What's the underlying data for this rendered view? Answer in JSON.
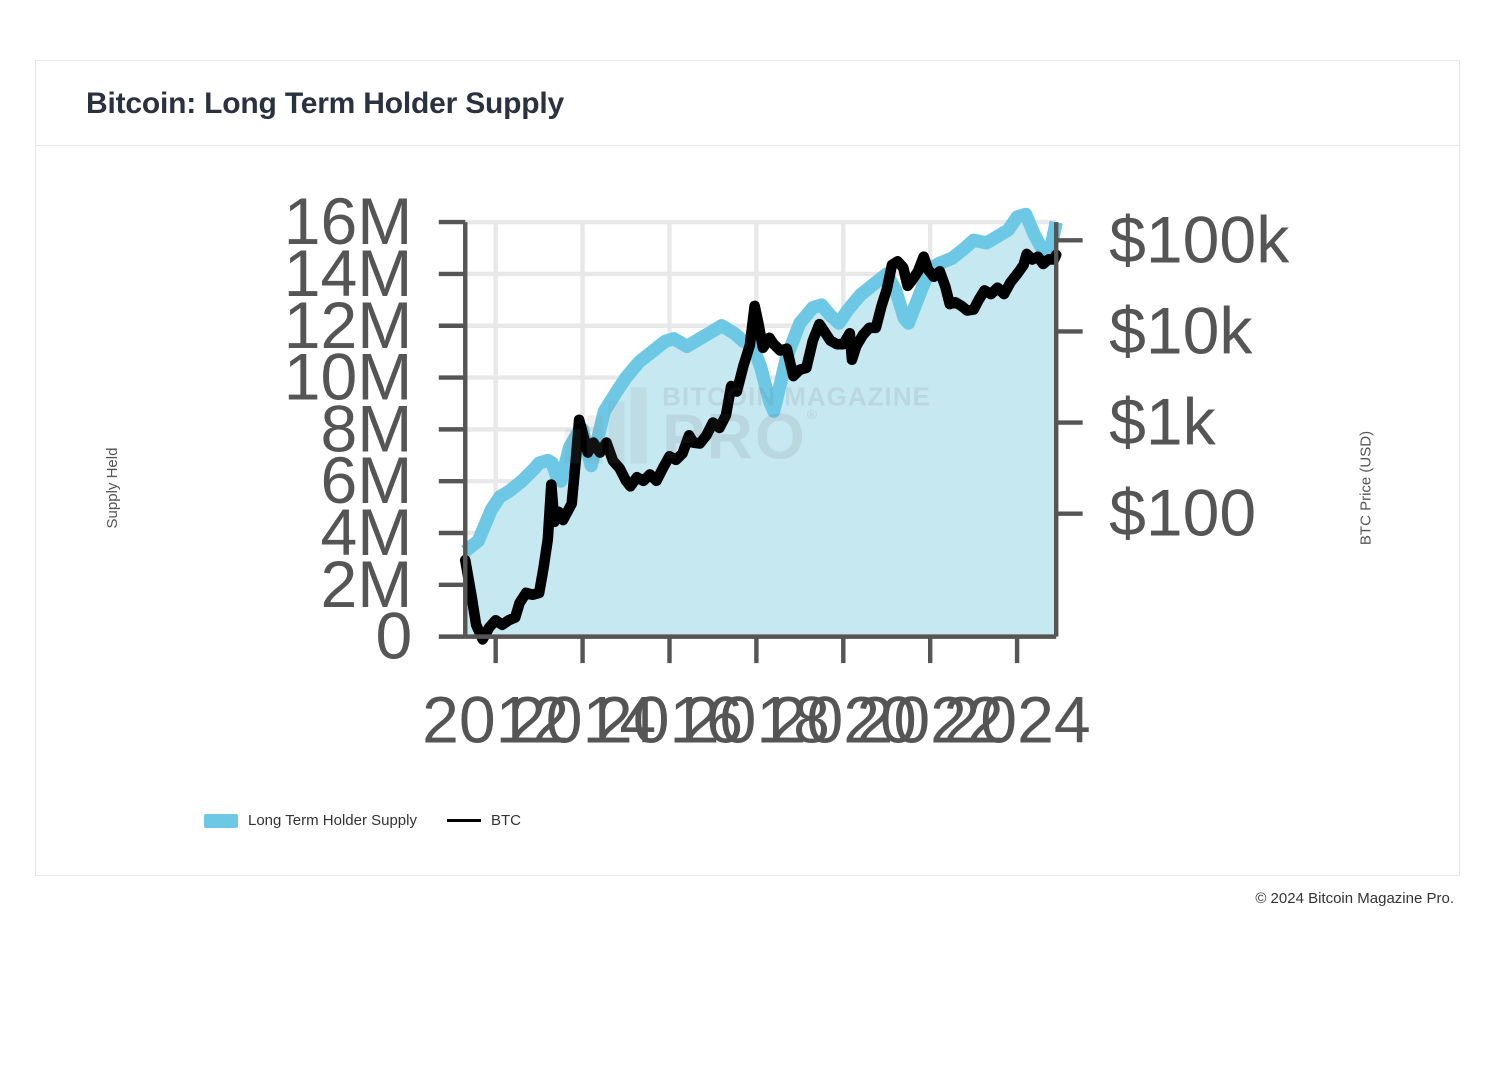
{
  "card": {
    "title": "Bitcoin: Long Term Holder Supply"
  },
  "chart": {
    "type": "area-and-line-dual-axis",
    "background_color": "#ffffff",
    "grid_color": "#e8e8e8",
    "axis_line_color": "#555555",
    "tick_font_size": 15,
    "tick_color": "#555555",
    "x_axis": {
      "min_year": 2011.3,
      "max_year": 2024.9,
      "ticks": [
        2012,
        2014,
        2016,
        2018,
        2020,
        2022,
        2024
      ]
    },
    "y_left": {
      "label": "Supply Held",
      "min": 0,
      "max": 16000000,
      "ticks": [
        {
          "v": 0,
          "label": "0"
        },
        {
          "v": 2000000,
          "label": "2M"
        },
        {
          "v": 4000000,
          "label": "4M"
        },
        {
          "v": 6000000,
          "label": "6M"
        },
        {
          "v": 8000000,
          "label": "8M"
        },
        {
          "v": 10000000,
          "label": "10M"
        },
        {
          "v": 12000000,
          "label": "12M"
        },
        {
          "v": 14000000,
          "label": "14M"
        },
        {
          "v": 16000000,
          "label": "16M"
        }
      ]
    },
    "y_right": {
      "label": "BTC Price (USD)",
      "scale": "log",
      "log_min": 0.65,
      "log_max": 5.2,
      "ticks": [
        {
          "log": 2,
          "label": "$100"
        },
        {
          "log": 3,
          "label": "$1k"
        },
        {
          "log": 4,
          "label": "$10k"
        },
        {
          "log": 5,
          "label": "$100k"
        }
      ]
    },
    "series_supply": {
      "name": "Long Term Holder Supply",
      "fill_color": "#c6e8f1",
      "line_color": "#6dc8e6",
      "line_width": 3,
      "points": [
        [
          2011.3,
          3300000
        ],
        [
          2011.6,
          3700000
        ],
        [
          2011.9,
          4900000
        ],
        [
          2012.1,
          5400000
        ],
        [
          2012.3,
          5600000
        ],
        [
          2012.6,
          6000000
        ],
        [
          2012.9,
          6500000
        ],
        [
          2013.0,
          6700000
        ],
        [
          2013.2,
          6800000
        ],
        [
          2013.3,
          6700000
        ],
        [
          2013.4,
          6200000
        ],
        [
          2013.5,
          6000000
        ],
        [
          2013.7,
          7300000
        ],
        [
          2013.9,
          7900000
        ],
        [
          2014.0,
          8000000
        ],
        [
          2014.1,
          7200000
        ],
        [
          2014.2,
          6600000
        ],
        [
          2014.5,
          8700000
        ],
        [
          2014.8,
          9500000
        ],
        [
          2015.0,
          10000000
        ],
        [
          2015.3,
          10600000
        ],
        [
          2015.6,
          11000000
        ],
        [
          2015.9,
          11400000
        ],
        [
          2016.1,
          11500000
        ],
        [
          2016.4,
          11200000
        ],
        [
          2016.7,
          11500000
        ],
        [
          2017.0,
          11800000
        ],
        [
          2017.2,
          12000000
        ],
        [
          2017.5,
          11700000
        ],
        [
          2017.7,
          11400000
        ],
        [
          2017.9,
          11300000
        ],
        [
          2018.1,
          10400000
        ],
        [
          2018.3,
          9100000
        ],
        [
          2018.4,
          8700000
        ],
        [
          2018.7,
          10800000
        ],
        [
          2019.0,
          12100000
        ],
        [
          2019.3,
          12700000
        ],
        [
          2019.5,
          12800000
        ],
        [
          2019.7,
          12400000
        ],
        [
          2019.9,
          12100000
        ],
        [
          2020.1,
          12600000
        ],
        [
          2020.4,
          13200000
        ],
        [
          2020.7,
          13600000
        ],
        [
          2021.0,
          14000000
        ],
        [
          2021.2,
          13400000
        ],
        [
          2021.4,
          12300000
        ],
        [
          2021.5,
          12100000
        ],
        [
          2021.8,
          13400000
        ],
        [
          2022.0,
          14200000
        ],
        [
          2022.2,
          14400000
        ],
        [
          2022.5,
          14600000
        ],
        [
          2022.8,
          15000000
        ],
        [
          2023.0,
          15300000
        ],
        [
          2023.3,
          15200000
        ],
        [
          2023.5,
          15400000
        ],
        [
          2023.8,
          15700000
        ],
        [
          2024.0,
          16200000
        ],
        [
          2024.2,
          16300000
        ],
        [
          2024.4,
          15500000
        ],
        [
          2024.6,
          14900000
        ],
        [
          2024.75,
          14800000
        ],
        [
          2024.9,
          16000000
        ]
      ]
    },
    "series_price": {
      "name": "BTC",
      "line_color": "#000000",
      "line_width": 2.4,
      "points_log10": [
        [
          2011.3,
          1.49
        ],
        [
          2011.45,
          1.08
        ],
        [
          2011.55,
          0.78
        ],
        [
          2011.7,
          0.62
        ],
        [
          2011.85,
          0.75
        ],
        [
          2012.0,
          0.83
        ],
        [
          2012.15,
          0.78
        ],
        [
          2012.3,
          0.83
        ],
        [
          2012.45,
          0.86
        ],
        [
          2012.55,
          1.02
        ],
        [
          2012.7,
          1.13
        ],
        [
          2012.85,
          1.11
        ],
        [
          2013.0,
          1.13
        ],
        [
          2013.1,
          1.4
        ],
        [
          2013.2,
          1.72
        ],
        [
          2013.28,
          2.32
        ],
        [
          2013.35,
          1.91
        ],
        [
          2013.45,
          2.02
        ],
        [
          2013.55,
          1.93
        ],
        [
          2013.65,
          2.02
        ],
        [
          2013.75,
          2.11
        ],
        [
          2013.85,
          2.62
        ],
        [
          2013.92,
          3.03
        ],
        [
          2014.0,
          2.89
        ],
        [
          2014.12,
          2.67
        ],
        [
          2014.25,
          2.78
        ],
        [
          2014.4,
          2.67
        ],
        [
          2014.55,
          2.78
        ],
        [
          2014.7,
          2.58
        ],
        [
          2014.85,
          2.5
        ],
        [
          2015.0,
          2.36
        ],
        [
          2015.1,
          2.3
        ],
        [
          2015.25,
          2.4
        ],
        [
          2015.4,
          2.36
        ],
        [
          2015.55,
          2.43
        ],
        [
          2015.7,
          2.36
        ],
        [
          2015.85,
          2.5
        ],
        [
          2016.0,
          2.63
        ],
        [
          2016.15,
          2.59
        ],
        [
          2016.3,
          2.66
        ],
        [
          2016.45,
          2.86
        ],
        [
          2016.55,
          2.78
        ],
        [
          2016.7,
          2.77
        ],
        [
          2016.85,
          2.86
        ],
        [
          2017.0,
          3.0
        ],
        [
          2017.15,
          2.94
        ],
        [
          2017.3,
          3.08
        ],
        [
          2017.42,
          3.4
        ],
        [
          2017.55,
          3.34
        ],
        [
          2017.7,
          3.62
        ],
        [
          2017.85,
          3.85
        ],
        [
          2017.96,
          4.28
        ],
        [
          2018.05,
          4.08
        ],
        [
          2018.15,
          3.82
        ],
        [
          2018.3,
          3.93
        ],
        [
          2018.4,
          3.86
        ],
        [
          2018.55,
          3.79
        ],
        [
          2018.7,
          3.81
        ],
        [
          2018.85,
          3.51
        ],
        [
          2019.0,
          3.58
        ],
        [
          2019.15,
          3.6
        ],
        [
          2019.3,
          3.9
        ],
        [
          2019.45,
          4.08
        ],
        [
          2019.55,
          4.01
        ],
        [
          2019.7,
          3.9
        ],
        [
          2019.85,
          3.86
        ],
        [
          2020.0,
          3.86
        ],
        [
          2020.15,
          3.98
        ],
        [
          2020.2,
          3.69
        ],
        [
          2020.3,
          3.84
        ],
        [
          2020.45,
          3.96
        ],
        [
          2020.6,
          4.04
        ],
        [
          2020.75,
          4.04
        ],
        [
          2020.88,
          4.28
        ],
        [
          2021.0,
          4.46
        ],
        [
          2021.12,
          4.73
        ],
        [
          2021.25,
          4.77
        ],
        [
          2021.38,
          4.7
        ],
        [
          2021.48,
          4.5
        ],
        [
          2021.58,
          4.56
        ],
        [
          2021.72,
          4.66
        ],
        [
          2021.85,
          4.82
        ],
        [
          2021.95,
          4.68
        ],
        [
          2022.08,
          4.6
        ],
        [
          2022.22,
          4.66
        ],
        [
          2022.35,
          4.49
        ],
        [
          2022.45,
          4.3
        ],
        [
          2022.58,
          4.32
        ],
        [
          2022.72,
          4.28
        ],
        [
          2022.85,
          4.23
        ],
        [
          2023.0,
          4.24
        ],
        [
          2023.12,
          4.35
        ],
        [
          2023.25,
          4.45
        ],
        [
          2023.4,
          4.41
        ],
        [
          2023.55,
          4.48
        ],
        [
          2023.7,
          4.41
        ],
        [
          2023.85,
          4.54
        ],
        [
          2024.0,
          4.63
        ],
        [
          2024.15,
          4.73
        ],
        [
          2024.22,
          4.85
        ],
        [
          2024.35,
          4.79
        ],
        [
          2024.48,
          4.82
        ],
        [
          2024.6,
          4.74
        ],
        [
          2024.72,
          4.79
        ],
        [
          2024.85,
          4.79
        ],
        [
          2024.9,
          4.84
        ]
      ]
    },
    "legend": {
      "items": [
        {
          "label": "Long Term Holder Supply",
          "swatch": "area"
        },
        {
          "label": "BTC",
          "swatch": "line"
        }
      ]
    },
    "watermark": {
      "line1": "BITCOIN MAGAZINE",
      "line2": "PRO",
      "reg": "®"
    }
  },
  "footer": {
    "copyright": "© 2024 Bitcoin Magazine Pro."
  }
}
